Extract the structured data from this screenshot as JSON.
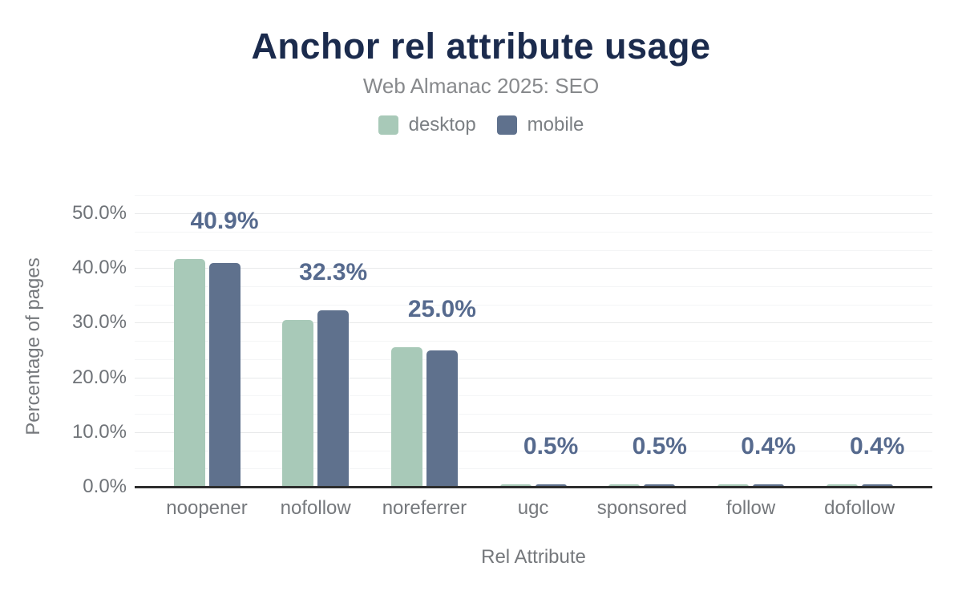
{
  "chart": {
    "title": "Anchor rel attribute usage",
    "subtitle": "Web Almanac 2025: SEO"
  },
  "chart_data": {
    "type": "bar",
    "title": "Anchor rel attribute usage",
    "subtitle": "Web Almanac 2025: SEO",
    "xlabel": "Rel Attribute",
    "ylabel": "Percentage of pages",
    "categories": [
      "noopener",
      "nofollow",
      "noreferrer",
      "ugc",
      "sponsored",
      "follow",
      "dofollow"
    ],
    "series": [
      {
        "name": "desktop",
        "color": "#a8c9b8",
        "values": [
          41.6,
          30.5,
          25.5,
          0.4,
          0.4,
          0.4,
          0.4
        ]
      },
      {
        "name": "mobile",
        "color": "#5f718d",
        "values": [
          40.9,
          32.3,
          25.0,
          0.5,
          0.5,
          0.4,
          0.4
        ]
      }
    ],
    "bar_labels": [
      "40.9%",
      "32.3%",
      "25.0%",
      "0.5%",
      "0.5%",
      "0.4%",
      "0.4%"
    ],
    "bar_label_series": "mobile",
    "ylim": [
      0,
      50
    ],
    "yticks": [
      "0.0%",
      "10.0%",
      "20.0%",
      "30.0%",
      "40.0%",
      "50.0%"
    ],
    "grid": true,
    "legend_position": "top",
    "colors": {
      "title": "#1b2b4d",
      "subtitle_text": "#87898c",
      "axis_text": "#75787c",
      "data_label": "#566a8e",
      "axis_line": "#2d2d2d",
      "grid_major": "#e8e9ea",
      "grid_minor": "#f4f5f6"
    }
  }
}
